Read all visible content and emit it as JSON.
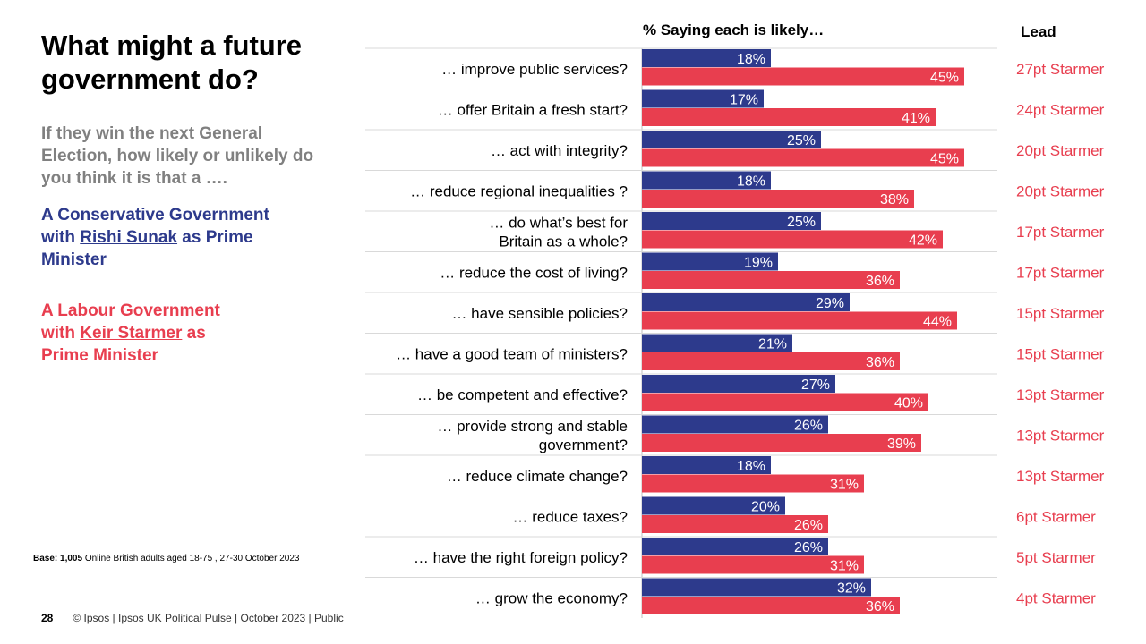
{
  "title": "What might a future government do?",
  "question": "If they win the next General Election, how likely or unlikely do you think it is that a ….",
  "legend": {
    "conservative": {
      "prefix": "A Conservative Government with ",
      "name": "Rishi Sunak",
      "suffix": " as Prime Minister",
      "color": "#2d3a8c"
    },
    "labour": {
      "prefix": "A Labour Government with ",
      "name": "Keir Starmer",
      "suffix": " as Prime Minister",
      "color": "#e83e4f"
    }
  },
  "base": {
    "label": "Base:",
    "count": "1,005",
    "text": " Online British adults aged 18-75 , 27-30 October 2023"
  },
  "footer": {
    "page_number": "28",
    "text": "© Ipsos | Ipsos UK Political Pulse | October 2023 | Public"
  },
  "chart_data": {
    "type": "bar",
    "orientation": "horizontal",
    "title": "% Saying each is likely…",
    "lead_header": "Lead",
    "categories": [
      [
        "… improve public services?"
      ],
      [
        "… offer Britain a fresh start?"
      ],
      [
        "… act with integrity?"
      ],
      [
        "… reduce regional inequalities ?"
      ],
      [
        "… do what’s best for",
        "Britain as a whole?"
      ],
      [
        "… reduce the cost of living?"
      ],
      [
        "… have sensible policies?"
      ],
      [
        "… have a good team of ministers?"
      ],
      [
        "… be competent and effective?"
      ],
      [
        "… provide strong and stable",
        "government?"
      ],
      [
        "… reduce climate change?"
      ],
      [
        "… reduce taxes?"
      ],
      [
        "… have the right foreign policy?"
      ],
      [
        "… grow the economy?"
      ]
    ],
    "series": [
      {
        "values": [
          18,
          17,
          25,
          18,
          25,
          19,
          29,
          21,
          27,
          26,
          18,
          20,
          26,
          32
        ],
        "color": "#2d3a8c"
      },
      {
        "values": [
          45,
          41,
          45,
          38,
          42,
          36,
          44,
          36,
          40,
          39,
          31,
          26,
          31,
          36
        ],
        "color": "#e83e4f"
      }
    ],
    "leads": [
      "27pt Starmer",
      "24pt Starmer",
      "20pt Starmer",
      "20pt Starmer",
      "17pt Starmer",
      "17pt Starmer",
      "15pt Starmer",
      "15pt Starmer",
      "13pt Starmer",
      "13pt Starmer",
      "13pt Starmer",
      "6pt Starmer",
      "5pt Starmer",
      "4pt Starmer"
    ],
    "lead_color": "#e83e4f",
    "value_suffix": "%",
    "grid": false
  }
}
